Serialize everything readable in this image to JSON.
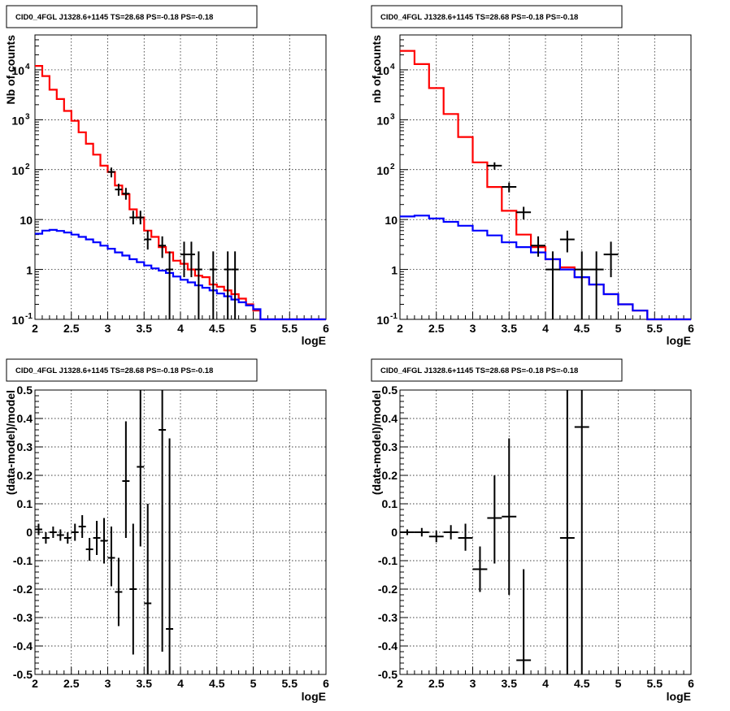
{
  "chart_data": [
    {
      "type": "histogram",
      "title": "CID0_4FGL J1328.6+1145 TS=28.68 PS=-0.18 PS=-0.18",
      "xlabel": "logE",
      "ylabel": "Nb of counts",
      "xlim": [
        2,
        6
      ],
      "ylim": [
        0.1,
        50000
      ],
      "yscale": "log",
      "grid": true,
      "x_ticks": [
        "2",
        "2.5",
        "3",
        "3.5",
        "4",
        "4.5",
        "5",
        "5.5",
        "6"
      ],
      "y_ticks": [
        {
          "v": 0.1,
          "base": "10",
          "exp": "-1"
        },
        {
          "v": 1,
          "base": "1",
          "exp": ""
        },
        {
          "v": 10,
          "base": "10",
          "exp": ""
        },
        {
          "v": 100,
          "base": "10",
          "exp": "2"
        },
        {
          "v": 1000,
          "base": "10",
          "exp": "3"
        },
        {
          "v": 10000,
          "base": "10",
          "exp": "4"
        }
      ],
      "bin_edges": [
        2.0,
        2.1,
        2.2,
        2.3,
        2.4,
        2.5,
        2.6,
        2.7,
        2.8,
        2.9,
        3.0,
        3.1,
        3.2,
        3.3,
        3.4,
        3.5,
        3.6,
        3.7,
        3.8,
        3.9,
        4.0,
        4.1,
        4.2,
        4.3,
        4.4,
        4.5,
        4.6,
        4.7,
        4.8,
        4.9,
        5.0,
        5.1,
        5.2,
        5.3,
        5.4,
        5.5,
        5.6,
        5.7,
        5.8,
        5.9,
        6.0
      ],
      "series": [
        {
          "color": "#ff0000",
          "kind": "step",
          "values": [
            12000,
            7500,
            4000,
            2600,
            1500,
            950,
            560,
            330,
            200,
            120,
            90,
            48,
            32,
            16,
            11,
            6,
            4.5,
            2.8,
            2.2,
            1.5,
            1.3,
            1.0,
            0.75,
            0.7,
            0.5,
            0.45,
            0.38,
            0.32,
            0.26,
            0.2,
            0.15,
            0.1,
            0.1,
            0.1,
            0.1,
            0.1,
            0.1,
            0.1,
            0.1,
            0.1
          ]
        },
        {
          "color": "#0000ff",
          "kind": "step",
          "values": [
            5.2,
            6.0,
            6.2,
            5.9,
            5.5,
            5.0,
            4.5,
            4.0,
            3.5,
            3.0,
            2.6,
            2.2,
            1.9,
            1.6,
            1.4,
            1.2,
            1.05,
            0.95,
            0.85,
            0.72,
            0.62,
            0.55,
            0.48,
            0.43,
            0.38,
            0.33,
            0.29,
            0.25,
            0.22,
            0.19,
            0.16,
            0.1,
            0.1,
            0.1,
            0.1,
            0.1,
            0.1,
            0.1,
            0.1,
            0.1
          ]
        }
      ],
      "points": [
        {
          "x": 3.05,
          "xe": 0.05,
          "y": 90,
          "ylo": 70,
          "yhi": 110
        },
        {
          "x": 3.15,
          "xe": 0.05,
          "y": 40,
          "ylo": 30,
          "yhi": 52
        },
        {
          "x": 3.25,
          "xe": 0.05,
          "y": 33,
          "ylo": 25,
          "yhi": 43
        },
        {
          "x": 3.35,
          "xe": 0.05,
          "y": 11,
          "ylo": 8,
          "yhi": 15
        },
        {
          "x": 3.45,
          "xe": 0.05,
          "y": 11,
          "ylo": 8,
          "yhi": 15
        },
        {
          "x": 3.55,
          "xe": 0.05,
          "y": 4,
          "ylo": 2.5,
          "yhi": 6
        },
        {
          "x": 3.75,
          "xe": 0.05,
          "y": 3,
          "ylo": 1.7,
          "yhi": 4.6
        },
        {
          "x": 3.85,
          "xe": 0.05,
          "y": 1,
          "ylo": 0.1,
          "yhi": 2.3
        },
        {
          "x": 4.05,
          "xe": 0.05,
          "y": 2,
          "ylo": 0.7,
          "yhi": 3.6
        },
        {
          "x": 4.15,
          "xe": 0.05,
          "y": 2,
          "ylo": 0.7,
          "yhi": 3.6
        },
        {
          "x": 4.25,
          "xe": 0.05,
          "y": 1,
          "ylo": 0.1,
          "yhi": 2.3
        },
        {
          "x": 4.45,
          "xe": 0.05,
          "y": 1,
          "ylo": 0.1,
          "yhi": 2.3
        },
        {
          "x": 4.65,
          "xe": 0.05,
          "y": 1,
          "ylo": 0.1,
          "yhi": 2.3
        },
        {
          "x": 4.75,
          "xe": 0.05,
          "y": 1,
          "ylo": 0.1,
          "yhi": 2.3
        }
      ]
    },
    {
      "type": "histogram",
      "title": "CID0_4FGL J1328.6+1145 TS=28.68 PS=-0.18 PS=-0.18",
      "xlabel": "logE",
      "ylabel": "nb of counts",
      "xlim": [
        2,
        6
      ],
      "ylim": [
        0.1,
        50000
      ],
      "yscale": "log",
      "grid": true,
      "x_ticks": [
        "2",
        "2.5",
        "3",
        "3.5",
        "4",
        "4.5",
        "5",
        "5.5",
        "6"
      ],
      "y_ticks": [
        {
          "v": 0.1,
          "base": "10",
          "exp": "-1"
        },
        {
          "v": 1,
          "base": "1",
          "exp": ""
        },
        {
          "v": 10,
          "base": "10",
          "exp": ""
        },
        {
          "v": 100,
          "base": "10",
          "exp": "2"
        },
        {
          "v": 1000,
          "base": "10",
          "exp": "3"
        },
        {
          "v": 10000,
          "base": "10",
          "exp": "4"
        }
      ],
      "bin_edges": [
        2.0,
        2.2,
        2.4,
        2.6,
        2.8,
        3.0,
        3.2,
        3.4,
        3.6,
        3.8,
        4.0,
        4.2,
        4.4,
        4.6,
        4.8,
        5.0,
        5.2,
        5.4,
        5.6,
        5.8,
        6.0
      ],
      "series": [
        {
          "color": "#ff0000",
          "kind": "step",
          "values": [
            24000,
            13000,
            4300,
            1300,
            450,
            140,
            45,
            15,
            5,
            2.8,
            1.6,
            1.1,
            0.7,
            0.5,
            0.32,
            0.2,
            0.15,
            0.1,
            0.1,
            0.1
          ]
        },
        {
          "color": "#0000ff",
          "kind": "step",
          "values": [
            11.5,
            12.0,
            10.5,
            9.0,
            7.5,
            6.0,
            4.8,
            3.5,
            2.8,
            2.2,
            1.6,
            1.0,
            0.7,
            0.5,
            0.32,
            0.2,
            0.15,
            0.1,
            0.1,
            0.1
          ]
        }
      ],
      "points": [
        {
          "x": 3.3,
          "xe": 0.1,
          "y": 120,
          "ylo": 100,
          "yhi": 140
        },
        {
          "x": 3.5,
          "xe": 0.1,
          "y": 45,
          "ylo": 35,
          "yhi": 55
        },
        {
          "x": 3.7,
          "xe": 0.1,
          "y": 14,
          "ylo": 10,
          "yhi": 18
        },
        {
          "x": 3.9,
          "xe": 0.1,
          "y": 3,
          "ylo": 1.8,
          "yhi": 4.6
        },
        {
          "x": 4.1,
          "xe": 0.1,
          "y": 1,
          "ylo": 0.1,
          "yhi": 2.3
        },
        {
          "x": 4.3,
          "xe": 0.1,
          "y": 4,
          "ylo": 2.2,
          "yhi": 6
        },
        {
          "x": 4.5,
          "xe": 0.1,
          "y": 1,
          "ylo": 0.1,
          "yhi": 2.3
        },
        {
          "x": 4.7,
          "xe": 0.1,
          "y": 1,
          "ylo": 0.1,
          "yhi": 2.3
        },
        {
          "x": 4.9,
          "xe": 0.1,
          "y": 2,
          "ylo": 0.7,
          "yhi": 3.6
        }
      ]
    },
    {
      "type": "scatter",
      "title": "CID0_4FGL J1328.6+1145 TS=28.68 PS=-0.18 PS=-0.18",
      "xlabel": "logE",
      "ylabel": "(data-model)/model",
      "xlim": [
        2,
        6
      ],
      "ylim": [
        -0.5,
        0.5
      ],
      "yscale": "linear",
      "grid": true,
      "x_ticks": [
        "2",
        "2.5",
        "3",
        "3.5",
        "4",
        "4.5",
        "5",
        "5.5",
        "6"
      ],
      "y_ticks": [
        "-0.5",
        "-0.4",
        "-0.3",
        "-0.2",
        "-0.1",
        "0",
        "0.1",
        "0.2",
        "0.3",
        "0.4",
        "0.5"
      ],
      "points": [
        {
          "x": 2.05,
          "xe": 0.05,
          "y": 0.01,
          "ylo": -0.01,
          "yhi": 0.03
        },
        {
          "x": 2.15,
          "xe": 0.05,
          "y": -0.02,
          "ylo": -0.04,
          "yhi": 0.0
        },
        {
          "x": 2.25,
          "xe": 0.05,
          "y": 0.0,
          "ylo": -0.02,
          "yhi": 0.02
        },
        {
          "x": 2.35,
          "xe": 0.05,
          "y": -0.01,
          "ylo": -0.03,
          "yhi": 0.01
        },
        {
          "x": 2.45,
          "xe": 0.05,
          "y": -0.02,
          "ylo": -0.04,
          "yhi": 0.0
        },
        {
          "x": 2.55,
          "xe": 0.05,
          "y": 0.0,
          "ylo": -0.03,
          "yhi": 0.03
        },
        {
          "x": 2.65,
          "xe": 0.05,
          "y": 0.02,
          "ylo": -0.02,
          "yhi": 0.06
        },
        {
          "x": 2.75,
          "xe": 0.05,
          "y": -0.06,
          "ylo": -0.1,
          "yhi": -0.02
        },
        {
          "x": 2.85,
          "xe": 0.05,
          "y": -0.02,
          "ylo": -0.08,
          "yhi": 0.04
        },
        {
          "x": 2.95,
          "xe": 0.05,
          "y": -0.03,
          "ylo": -0.11,
          "yhi": 0.05
        },
        {
          "x": 3.05,
          "xe": 0.05,
          "y": -0.09,
          "ylo": -0.19,
          "yhi": 0.02
        },
        {
          "x": 3.15,
          "xe": 0.05,
          "y": -0.21,
          "ylo": -0.33,
          "yhi": -0.09
        },
        {
          "x": 3.25,
          "xe": 0.05,
          "y": 0.18,
          "ylo": -0.02,
          "yhi": 0.39
        },
        {
          "x": 3.35,
          "xe": 0.05,
          "y": -0.2,
          "ylo": -0.43,
          "yhi": 0.03
        },
        {
          "x": 3.45,
          "xe": 0.05,
          "y": 0.23,
          "ylo": -0.05,
          "yhi": 0.5
        },
        {
          "x": 3.55,
          "xe": 0.05,
          "y": -0.25,
          "ylo": -0.5,
          "yhi": 0.1
        },
        {
          "x": 3.75,
          "xe": 0.05,
          "y": 0.36,
          "ylo": -0.42,
          "yhi": 0.5
        },
        {
          "x": 3.85,
          "xe": 0.05,
          "y": -0.34,
          "ylo": -0.5,
          "yhi": 0.33
        }
      ]
    },
    {
      "type": "scatter",
      "title": "CID0_4FGL J1328.6+1145 TS=28.68 PS=-0.18 PS=-0.18",
      "xlabel": "logE",
      "ylabel": "(data-model)/model",
      "xlim": [
        2,
        6
      ],
      "ylim": [
        -0.5,
        0.5
      ],
      "yscale": "linear",
      "grid": true,
      "x_ticks": [
        "2",
        "2.5",
        "3",
        "3.5",
        "4",
        "4.5",
        "5",
        "5.5",
        "6"
      ],
      "y_ticks": [
        "-0.5",
        "-0.4",
        "-0.3",
        "-0.2",
        "-0.1",
        "0",
        "0.1",
        "0.2",
        "0.3",
        "0.4",
        "0.5"
      ],
      "points": [
        {
          "x": 2.1,
          "xe": 0.1,
          "y": 0.0,
          "ylo": -0.01,
          "yhi": 0.01
        },
        {
          "x": 2.3,
          "xe": 0.1,
          "y": 0.0,
          "ylo": -0.015,
          "yhi": 0.015
        },
        {
          "x": 2.5,
          "xe": 0.1,
          "y": -0.015,
          "ylo": -0.035,
          "yhi": 0.005
        },
        {
          "x": 2.7,
          "xe": 0.1,
          "y": 0.0,
          "ylo": -0.025,
          "yhi": 0.025
        },
        {
          "x": 2.9,
          "xe": 0.1,
          "y": -0.02,
          "ylo": -0.065,
          "yhi": 0.03
        },
        {
          "x": 3.1,
          "xe": 0.1,
          "y": -0.13,
          "ylo": -0.21,
          "yhi": -0.05
        },
        {
          "x": 3.3,
          "xe": 0.1,
          "y": 0.05,
          "ylo": -0.11,
          "yhi": 0.2
        },
        {
          "x": 3.5,
          "xe": 0.1,
          "y": 0.055,
          "ylo": -0.22,
          "yhi": 0.33
        },
        {
          "x": 3.7,
          "xe": 0.1,
          "y": -0.45,
          "ylo": -0.5,
          "yhi": -0.13
        },
        {
          "x": 4.3,
          "xe": 0.1,
          "y": -0.02,
          "ylo": -0.5,
          "yhi": 0.5
        },
        {
          "x": 4.5,
          "xe": 0.1,
          "y": 0.37,
          "ylo": -0.5,
          "yhi": 0.5
        }
      ]
    }
  ]
}
